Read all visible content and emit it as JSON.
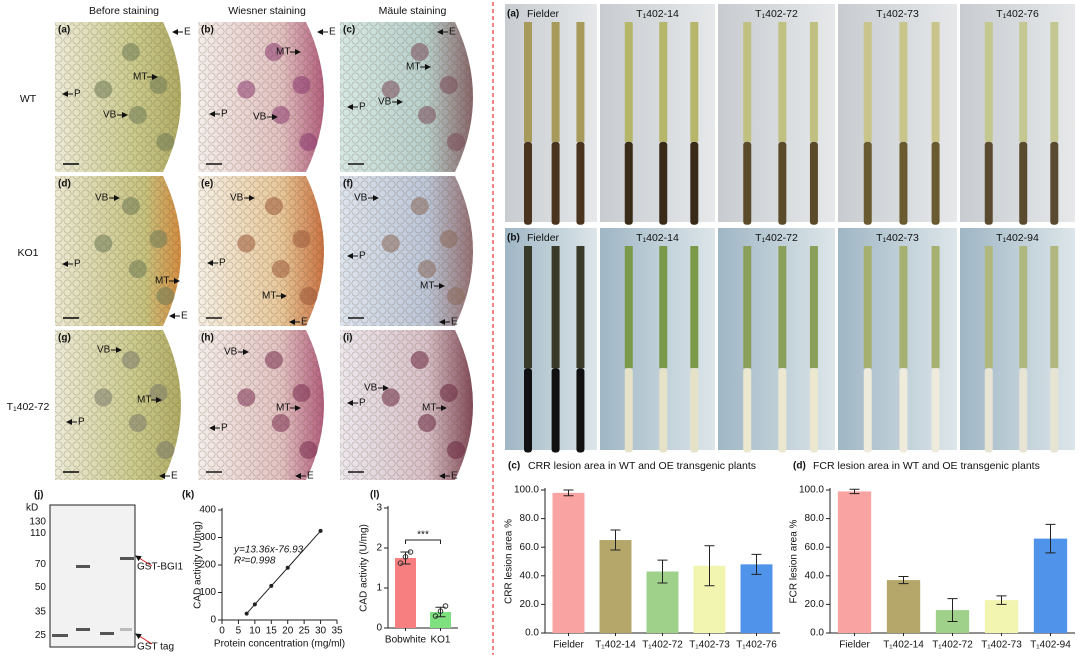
{
  "figure": {
    "left_columns": [
      "Before staining",
      "Wiesner staining",
      "Mäule staining"
    ],
    "row_labels": [
      "WT",
      "KO1",
      "T₁402-72"
    ],
    "micrographs": [
      {
        "label": "(a)",
        "marks": [
          "E",
          "MT",
          "P",
          "VB"
        ]
      },
      {
        "label": "(b)",
        "marks": [
          "E",
          "MT",
          "P",
          "VB"
        ]
      },
      {
        "label": "(c)",
        "marks": [
          "E",
          "MT",
          "P",
          "VB"
        ]
      },
      {
        "label": "(d)",
        "marks": [
          "VB",
          "P",
          "MT",
          "E"
        ]
      },
      {
        "label": "(e)",
        "marks": [
          "VB",
          "P",
          "MT",
          "E"
        ]
      },
      {
        "label": "(f)",
        "marks": [
          "VB",
          "P",
          "MT",
          "E"
        ]
      },
      {
        "label": "(g)",
        "marks": [
          "VB",
          "P",
          "MT",
          "E"
        ]
      },
      {
        "label": "(h)",
        "marks": [
          "VB",
          "P",
          "MT",
          "E"
        ]
      },
      {
        "label": "(i)",
        "marks": [
          "VB",
          "P",
          "MT",
          "E"
        ]
      }
    ],
    "photos": [
      {
        "label": "(a)",
        "columns": [
          "Fielder",
          "T₁402-14",
          "T₁402-72",
          "T₁402-73",
          "T₁402-76"
        ]
      },
      {
        "label": "(b)",
        "columns": [
          "Fielder",
          "T₁402-14",
          "T₁402-72",
          "T₁402-73",
          "T₁402-94"
        ]
      }
    ],
    "gel": {
      "label": "(j)",
      "unit": "kD",
      "markers": [
        130,
        110,
        70,
        50,
        35,
        25
      ],
      "bands": [
        "GST-BGI1",
        "GST tag"
      ]
    }
  },
  "chart_data": [
    {
      "type": "line",
      "label": "(k)",
      "x": [
        7.5,
        10,
        15,
        20,
        30
      ],
      "values": [
        23,
        57,
        124,
        190,
        324
      ],
      "xlim": [
        0,
        35
      ],
      "xticks": [
        0,
        5,
        10,
        15,
        20,
        25,
        30,
        35
      ],
      "ylim": [
        0,
        400
      ],
      "yticks": [
        0,
        100,
        200,
        300,
        400
      ],
      "x_label": "Protein concentration (mg/ml)",
      "y_label": "CAD activity (U/mg)",
      "color": "#222222",
      "annotations": [
        "y=13.36x-76.93",
        "R²=0.998"
      ]
    },
    {
      "type": "bar",
      "label": "(l)",
      "categories": [
        "Bobwhite",
        "KO1"
      ],
      "values": [
        1.75,
        0.4
      ],
      "errors": [
        0.15,
        0.12
      ],
      "points": [
        [
          1.62,
          1.78,
          1.9
        ],
        [
          0.3,
          0.42,
          0.55
        ]
      ],
      "colors": [
        "#f77f7f",
        "#7fe07f"
      ],
      "ylim": [
        0,
        3
      ],
      "yticks": [
        0,
        1,
        2,
        3
      ],
      "y_label": "CAD activity (U/mg)",
      "annotations": [
        "***"
      ]
    },
    {
      "type": "bar",
      "label": "(c)",
      "title": "CRR lesion area in WT and OE transgenic plants",
      "categories": [
        "Fielder",
        "T₁402-14",
        "T₁402-72",
        "T₁402-73",
        "T₁402-76"
      ],
      "values": [
        98,
        65,
        43,
        47,
        48
      ],
      "errors": [
        2,
        7,
        8,
        14,
        7
      ],
      "colors": [
        "#f9a3a3",
        "#b5a66a",
        "#9fd18b",
        "#f2f5b0",
        "#4f94ea"
      ],
      "ylim": [
        0,
        100
      ],
      "yticks": [
        {
          "value": 0,
          "label": "0.0"
        },
        {
          "value": 20,
          "label": "20.0"
        },
        {
          "value": 40,
          "label": "40.0"
        },
        {
          "value": 60,
          "label": "60.0"
        },
        {
          "value": 80,
          "label": "80.0"
        },
        {
          "value": 100,
          "label": "100.0"
        }
      ],
      "y_label": "CRR lesion area %"
    },
    {
      "type": "bar",
      "label": "(d)",
      "title": "FCR lesion area in WT and OE transgenic plants",
      "categories": [
        "Fielder",
        "T₁402-14",
        "T₁402-72",
        "T₁402-73",
        "T₁402-94"
      ],
      "values": [
        99,
        37,
        16,
        23,
        66
      ],
      "errors": [
        1.5,
        2.5,
        8,
        3,
        10
      ],
      "colors": [
        "#f9a3a3",
        "#b5a66a",
        "#9fd18b",
        "#f2f5b0",
        "#4f94ea"
      ],
      "ylim": [
        0,
        100
      ],
      "yticks": [
        {
          "value": 0,
          "label": "0.0"
        },
        {
          "value": 20,
          "label": "20.0"
        },
        {
          "value": 40,
          "label": "40.0"
        },
        {
          "value": 60,
          "label": "60.0"
        },
        {
          "value": 80,
          "label": "80.0"
        },
        {
          "value": 100,
          "label": "100.0"
        }
      ],
      "y_label": "FCR lesion area %"
    }
  ]
}
